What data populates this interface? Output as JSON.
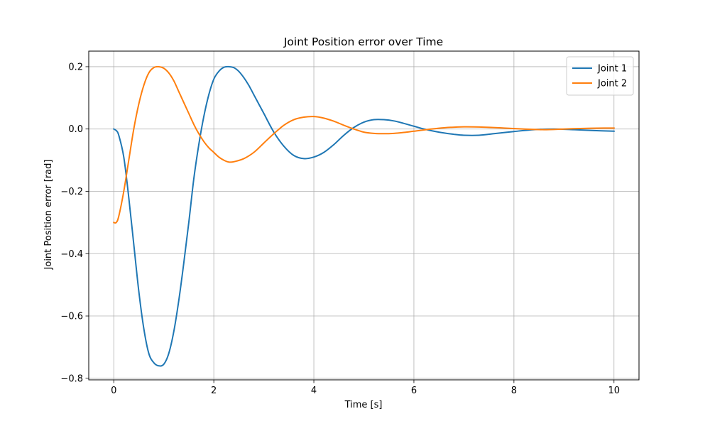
{
  "chart_data": {
    "type": "line",
    "title": "Joint Position error over Time",
    "xlabel": "Time [s]",
    "ylabel": "Joint Position error [rad]",
    "xlim": [
      -0.5,
      10.5
    ],
    "ylim": [
      -0.805,
      0.25
    ],
    "xticks": [
      0,
      2,
      4,
      6,
      8,
      10
    ],
    "yticks": [
      0.2,
      0.0,
      -0.2,
      -0.4,
      -0.6,
      -0.8
    ],
    "xtick_labels": [
      "0",
      "2",
      "4",
      "6",
      "8",
      "10"
    ],
    "ytick_labels": [
      "0.2",
      "0.0",
      "−0.2",
      "−0.4",
      "−0.6",
      "−0.8"
    ],
    "grid": true,
    "legend_position": "top-right",
    "series": [
      {
        "name": "Joint 1",
        "color": "#1f77b4",
        "x": [
          0,
          0.05,
          0.1,
          0.2,
          0.3,
          0.4,
          0.5,
          0.6,
          0.7,
          0.8,
          0.9,
          1.0,
          1.1,
          1.2,
          1.3,
          1.4,
          1.5,
          1.6,
          1.7,
          1.8,
          1.9,
          2.0,
          2.1,
          2.2,
          2.3,
          2.4,
          2.5,
          2.6,
          2.7,
          2.8,
          2.9,
          3.0,
          3.2,
          3.4,
          3.6,
          3.8,
          4.0,
          4.2,
          4.4,
          4.6,
          4.8,
          5.0,
          5.2,
          5.4,
          5.6,
          5.8,
          6.0,
          6.2,
          6.5,
          6.8,
          7.0,
          7.3,
          7.6,
          8.0,
          8.4,
          8.8,
          9.2,
          9.6,
          10.0
        ],
        "y": [
          0.0,
          -0.005,
          -0.02,
          -0.09,
          -0.22,
          -0.37,
          -0.52,
          -0.64,
          -0.72,
          -0.75,
          -0.76,
          -0.755,
          -0.72,
          -0.65,
          -0.55,
          -0.43,
          -0.3,
          -0.16,
          -0.05,
          0.04,
          0.11,
          0.16,
          0.185,
          0.198,
          0.2,
          0.197,
          0.185,
          0.165,
          0.14,
          0.11,
          0.08,
          0.05,
          -0.01,
          -0.055,
          -0.085,
          -0.095,
          -0.09,
          -0.075,
          -0.05,
          -0.02,
          0.005,
          0.022,
          0.03,
          0.03,
          0.026,
          0.018,
          0.009,
          0.0,
          -0.01,
          -0.017,
          -0.02,
          -0.02,
          -0.015,
          -0.008,
          -0.002,
          0.0,
          -0.002,
          -0.005,
          -0.007
        ]
      },
      {
        "name": "Joint 2",
        "color": "#ff7f0e",
        "x": [
          0,
          0.05,
          0.1,
          0.2,
          0.3,
          0.4,
          0.5,
          0.6,
          0.7,
          0.8,
          0.9,
          1.0,
          1.1,
          1.2,
          1.3,
          1.4,
          1.5,
          1.6,
          1.7,
          1.8,
          1.9,
          2.0,
          2.1,
          2.2,
          2.3,
          2.4,
          2.6,
          2.8,
          3.0,
          3.2,
          3.4,
          3.6,
          3.8,
          4.0,
          4.2,
          4.4,
          4.6,
          4.8,
          5.0,
          5.2,
          5.4,
          5.6,
          5.8,
          6.0,
          6.3,
          6.6,
          7.0,
          7.4,
          7.8,
          8.2,
          8.6,
          9.0,
          9.4,
          9.8,
          10.0
        ],
        "y": [
          -0.3,
          -0.3,
          -0.28,
          -0.2,
          -0.1,
          0.0,
          0.08,
          0.14,
          0.18,
          0.197,
          0.2,
          0.195,
          0.18,
          0.155,
          0.12,
          0.085,
          0.05,
          0.015,
          -0.015,
          -0.04,
          -0.06,
          -0.075,
          -0.09,
          -0.1,
          -0.106,
          -0.105,
          -0.095,
          -0.075,
          -0.045,
          -0.015,
          0.012,
          0.03,
          0.038,
          0.04,
          0.035,
          0.025,
          0.012,
          0.0,
          -0.01,
          -0.014,
          -0.015,
          -0.014,
          -0.011,
          -0.007,
          -0.001,
          0.004,
          0.007,
          0.006,
          0.003,
          0.0,
          -0.002,
          0.0,
          0.002,
          0.003,
          0.003
        ]
      }
    ]
  }
}
